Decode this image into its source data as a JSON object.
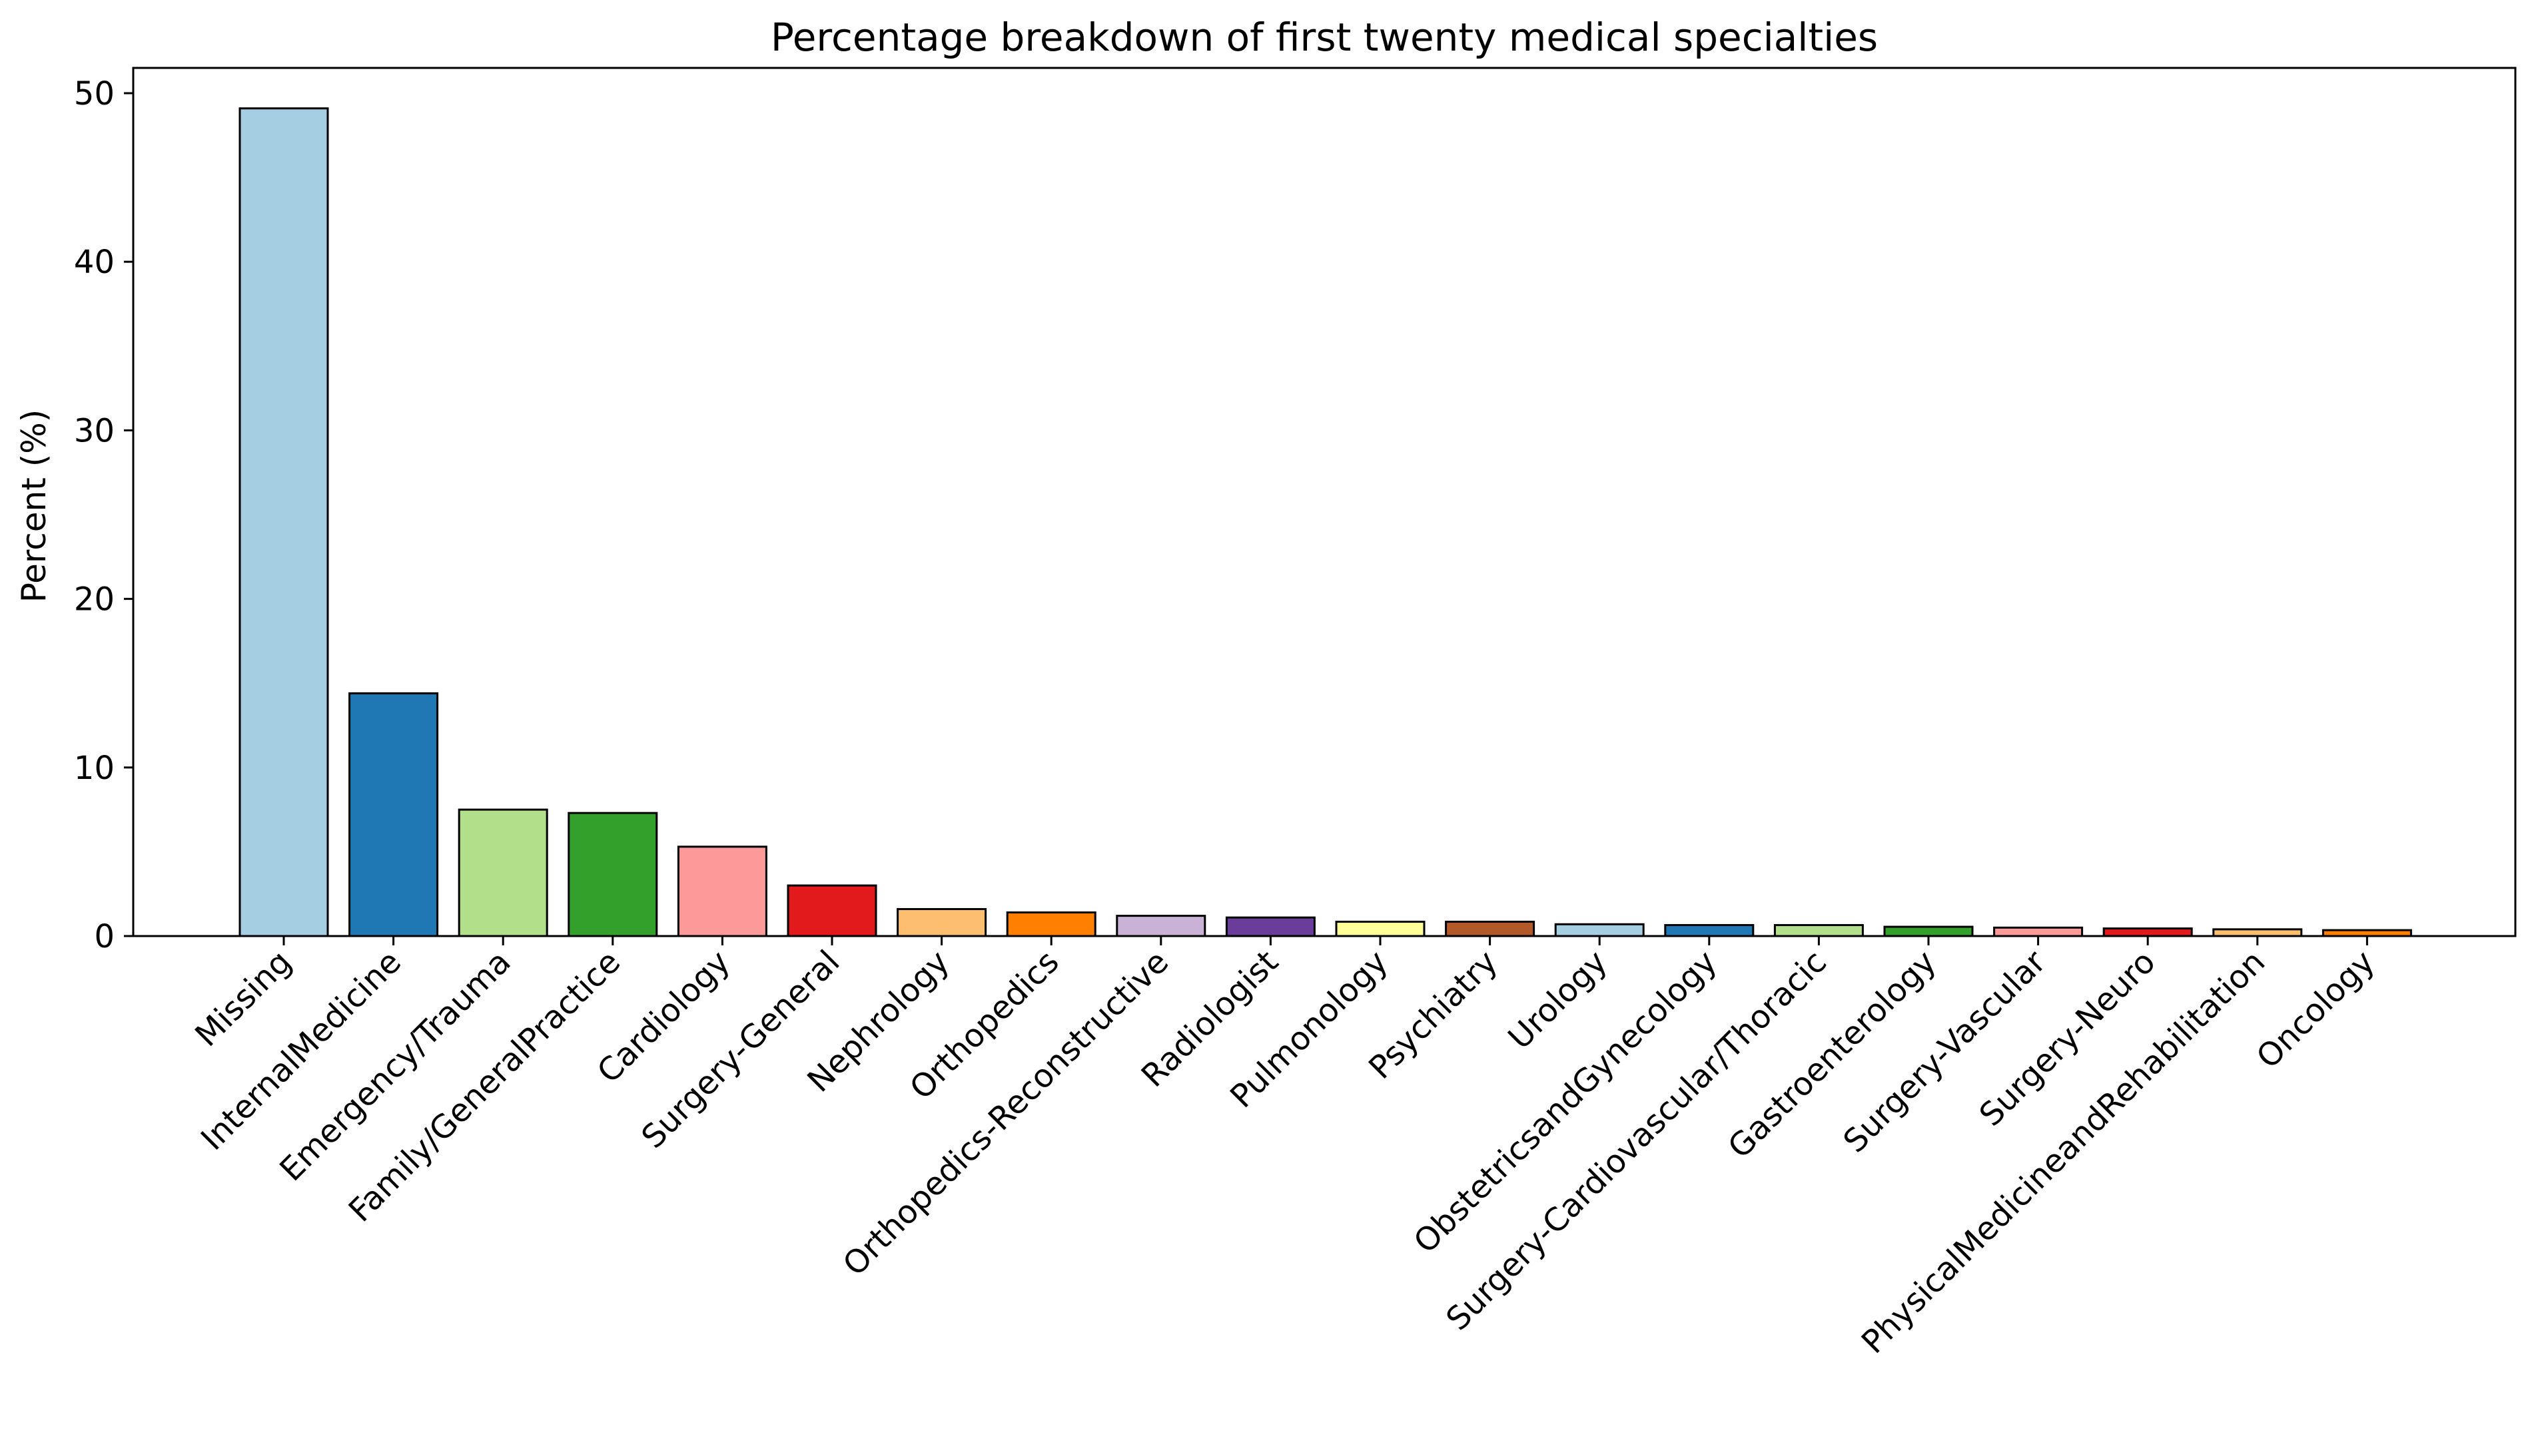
{
  "chart_data": {
    "type": "bar",
    "title": "Percentage breakdown of first twenty medical specialties",
    "xlabel": "",
    "ylabel": "Percent (%)",
    "ylim": [
      0,
      51.5
    ],
    "yticks": [
      0,
      10,
      20,
      30,
      40,
      50
    ],
    "grid": false,
    "legend": "none",
    "categories": [
      "Missing",
      "InternalMedicine",
      "Emergency/Trauma",
      "Family/GeneralPractice",
      "Cardiology",
      "Surgery-General",
      "Nephrology",
      "Orthopedics",
      "Orthopedics-Reconstructive",
      "Radiologist",
      "Pulmonology",
      "Psychiatry",
      "Urology",
      "ObstetricsandGynecology",
      "Surgery-Cardiovascular/Thoracic",
      "Gastroenterology",
      "Surgery-Vascular",
      "Surgery-Neuro",
      "PhysicalMedicineandRehabilitation",
      "Oncology"
    ],
    "values": [
      49.1,
      14.4,
      7.5,
      7.3,
      5.3,
      3.0,
      1.6,
      1.4,
      1.2,
      1.1,
      0.85,
      0.85,
      0.7,
      0.65,
      0.65,
      0.55,
      0.5,
      0.45,
      0.4,
      0.35
    ],
    "colors": [
      "#a6cee3",
      "#1f78b4",
      "#b2df8a",
      "#33a02c",
      "#fb9a99",
      "#e31a1c",
      "#fdbf6f",
      "#ff7f00",
      "#cab2d6",
      "#6a3d9a",
      "#ffff99",
      "#b15928",
      "#a6cee3",
      "#1f78b4",
      "#b2df8a",
      "#33a02c",
      "#fb9a99",
      "#e31a1c",
      "#fdbf6f",
      "#ff7f00"
    ],
    "bar_edge_color": "#000000"
  }
}
